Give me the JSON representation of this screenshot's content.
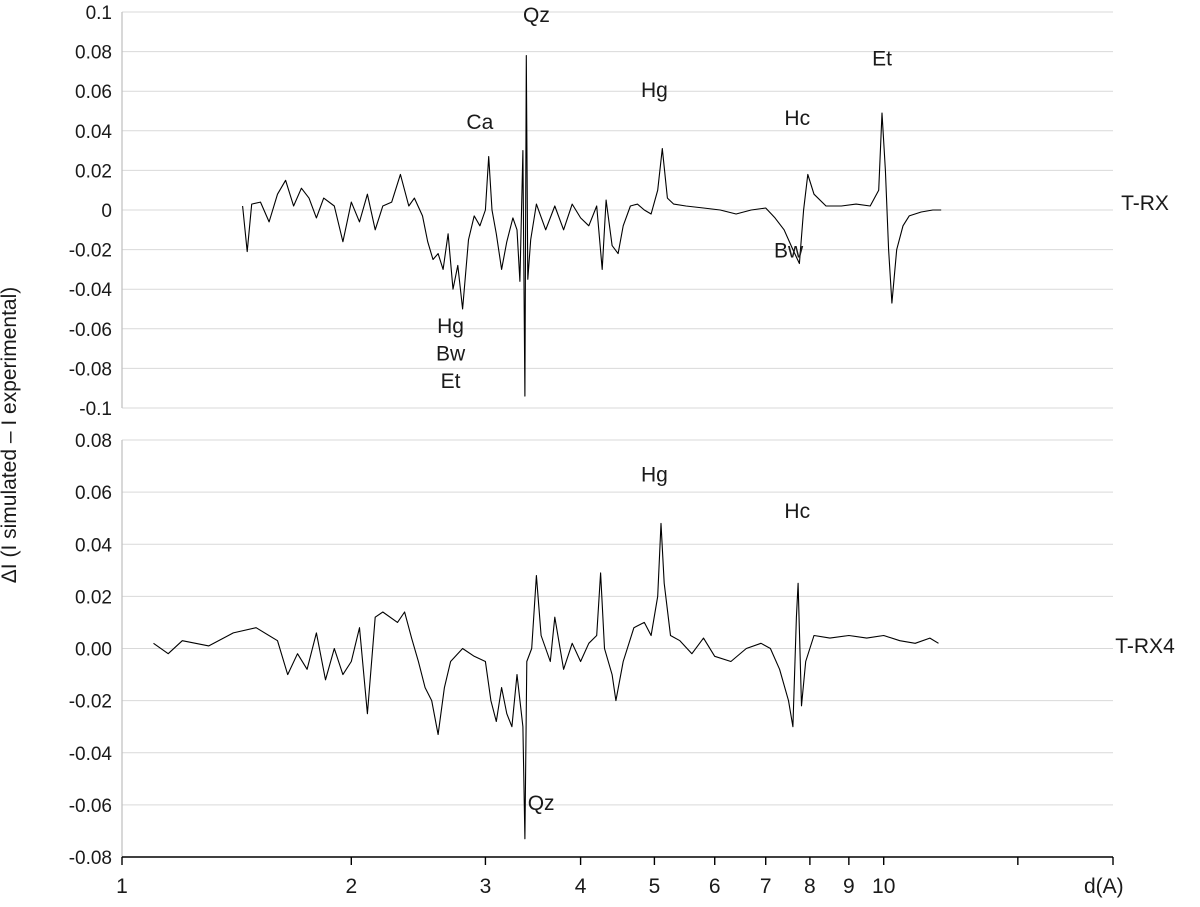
{
  "chart_data": [
    {
      "type": "line",
      "panel": "top",
      "series_label": "T-RX",
      "ylabel": "ΔI (I simulated – I experimental)",
      "xlabel": "d(A)",
      "x_scale": "log",
      "xlim": [
        1,
        20
      ],
      "ylim": [
        -0.1,
        0.1
      ],
      "y_ticks": [
        "0.1",
        "0.08",
        "0.06",
        "0.04",
        "0.02",
        "0",
        "-0.02",
        "-0.04",
        "-0.06",
        "-0.08",
        "-0.1"
      ],
      "y_tick_values": [
        0.1,
        0.08,
        0.06,
        0.04,
        0.02,
        0,
        -0.02,
        -0.04,
        -0.06,
        -0.08,
        -0.1
      ],
      "grid": true,
      "x_range": [
        1.44,
        11.9
      ],
      "points": [
        [
          1.44,
          0.002
        ],
        [
          1.46,
          -0.021
        ],
        [
          1.48,
          0.003
        ],
        [
          1.52,
          0.004
        ],
        [
          1.56,
          -0.006
        ],
        [
          1.6,
          0.008
        ],
        [
          1.64,
          0.015
        ],
        [
          1.68,
          0.002
        ],
        [
          1.72,
          0.011
        ],
        [
          1.76,
          0.006
        ],
        [
          1.8,
          -0.004
        ],
        [
          1.84,
          0.006
        ],
        [
          1.9,
          0.002
        ],
        [
          1.95,
          -0.016
        ],
        [
          2.0,
          0.004
        ],
        [
          2.05,
          -0.006
        ],
        [
          2.1,
          0.008
        ],
        [
          2.15,
          -0.01
        ],
        [
          2.2,
          0.002
        ],
        [
          2.26,
          0.004
        ],
        [
          2.32,
          0.018
        ],
        [
          2.38,
          0.002
        ],
        [
          2.42,
          0.006
        ],
        [
          2.48,
          -0.003
        ],
        [
          2.52,
          -0.016
        ],
        [
          2.56,
          -0.025
        ],
        [
          2.6,
          -0.022
        ],
        [
          2.64,
          -0.03
        ],
        [
          2.68,
          -0.012
        ],
        [
          2.72,
          -0.04
        ],
        [
          2.76,
          -0.028
        ],
        [
          2.8,
          -0.05
        ],
        [
          2.85,
          -0.015
        ],
        [
          2.9,
          -0.003
        ],
        [
          2.95,
          -0.008
        ],
        [
          3.0,
          0.0
        ],
        [
          3.03,
          0.027
        ],
        [
          3.06,
          0.0
        ],
        [
          3.1,
          -0.012
        ],
        [
          3.15,
          -0.03
        ],
        [
          3.2,
          -0.016
        ],
        [
          3.26,
          -0.004
        ],
        [
          3.3,
          -0.01
        ],
        [
          3.33,
          -0.036
        ],
        [
          3.36,
          0.03
        ],
        [
          3.38,
          -0.094
        ],
        [
          3.395,
          0.078
        ],
        [
          3.41,
          -0.035
        ],
        [
          3.44,
          -0.015
        ],
        [
          3.5,
          0.003
        ],
        [
          3.6,
          -0.01
        ],
        [
          3.7,
          0.002
        ],
        [
          3.8,
          -0.01
        ],
        [
          3.9,
          0.003
        ],
        [
          4.0,
          -0.004
        ],
        [
          4.1,
          -0.008
        ],
        [
          4.2,
          0.002
        ],
        [
          4.27,
          -0.03
        ],
        [
          4.32,
          0.005
        ],
        [
          4.4,
          -0.018
        ],
        [
          4.48,
          -0.022
        ],
        [
          4.55,
          -0.008
        ],
        [
          4.65,
          0.002
        ],
        [
          4.75,
          0.003
        ],
        [
          4.85,
          0.0
        ],
        [
          4.95,
          -0.002
        ],
        [
          5.05,
          0.01
        ],
        [
          5.12,
          0.031
        ],
        [
          5.2,
          0.006
        ],
        [
          5.3,
          0.003
        ],
        [
          5.5,
          0.002
        ],
        [
          5.8,
          0.001
        ],
        [
          6.1,
          0.0
        ],
        [
          6.4,
          -0.002
        ],
        [
          6.7,
          0.0
        ],
        [
          7.0,
          0.001
        ],
        [
          7.2,
          -0.004
        ],
        [
          7.4,
          -0.01
        ],
        [
          7.6,
          -0.02
        ],
        [
          7.75,
          -0.027
        ],
        [
          7.85,
          0.0
        ],
        [
          7.95,
          0.018
        ],
        [
          8.1,
          0.008
        ],
        [
          8.4,
          0.002
        ],
        [
          8.8,
          0.002
        ],
        [
          9.2,
          0.003
        ],
        [
          9.6,
          0.002
        ],
        [
          9.85,
          0.01
        ],
        [
          9.95,
          0.049
        ],
        [
          10.05,
          0.02
        ],
        [
          10.15,
          -0.02
        ],
        [
          10.25,
          -0.047
        ],
        [
          10.4,
          -0.02
        ],
        [
          10.6,
          -0.008
        ],
        [
          10.8,
          -0.003
        ],
        [
          11.2,
          -0.001
        ],
        [
          11.6,
          0.0
        ],
        [
          11.9,
          0.0
        ]
      ],
      "annotations": [
        {
          "text": "Qz",
          "x": 3.5,
          "y": 0.095
        },
        {
          "text": "Ca",
          "x": 2.95,
          "y": 0.041
        },
        {
          "text": "Hg",
          "x": 5.0,
          "y": 0.057
        },
        {
          "text": "Hc",
          "x": 7.7,
          "y": 0.043
        },
        {
          "text": "Et",
          "x": 9.95,
          "y": 0.073
        },
        {
          "text": "Bw",
          "x": 7.5,
          "y": -0.024
        },
        {
          "text": "Hg",
          "x": 2.7,
          "y": -0.062
        },
        {
          "text": "Bw",
          "x": 2.7,
          "y": -0.076
        },
        {
          "text": "Et",
          "x": 2.7,
          "y": -0.09
        }
      ]
    },
    {
      "type": "line",
      "panel": "bottom",
      "series_label": "T-RX4",
      "x_scale": "log",
      "xlim": [
        1,
        20
      ],
      "ylim": [
        -0.08,
        0.08
      ],
      "y_ticks": [
        "0.08",
        "0.06",
        "0.04",
        "0.02",
        "0.00",
        "-0.02",
        "-0.04",
        "-0.06",
        "-0.08"
      ],
      "y_tick_values": [
        0.08,
        0.06,
        0.04,
        0.02,
        0,
        -0.02,
        -0.04,
        -0.06,
        -0.08
      ],
      "grid": true,
      "x_range": [
        1.1,
        11.8
      ],
      "points": [
        [
          1.1,
          0.002
        ],
        [
          1.15,
          -0.002
        ],
        [
          1.2,
          0.003
        ],
        [
          1.3,
          0.001
        ],
        [
          1.4,
          0.006
        ],
        [
          1.5,
          0.008
        ],
        [
          1.6,
          0.003
        ],
        [
          1.65,
          -0.01
        ],
        [
          1.7,
          -0.002
        ],
        [
          1.75,
          -0.008
        ],
        [
          1.8,
          0.006
        ],
        [
          1.85,
          -0.012
        ],
        [
          1.9,
          0.0
        ],
        [
          1.95,
          -0.01
        ],
        [
          2.0,
          -0.005
        ],
        [
          2.05,
          0.008
        ],
        [
          2.1,
          -0.025
        ],
        [
          2.15,
          0.012
        ],
        [
          2.2,
          0.014
        ],
        [
          2.3,
          0.01
        ],
        [
          2.35,
          0.014
        ],
        [
          2.4,
          0.004
        ],
        [
          2.45,
          -0.005
        ],
        [
          2.5,
          -0.015
        ],
        [
          2.55,
          -0.02
        ],
        [
          2.6,
          -0.033
        ],
        [
          2.65,
          -0.015
        ],
        [
          2.7,
          -0.005
        ],
        [
          2.8,
          0.0
        ],
        [
          2.9,
          -0.003
        ],
        [
          3.0,
          -0.005
        ],
        [
          3.05,
          -0.02
        ],
        [
          3.1,
          -0.028
        ],
        [
          3.15,
          -0.015
        ],
        [
          3.2,
          -0.025
        ],
        [
          3.25,
          -0.03
        ],
        [
          3.3,
          -0.01
        ],
        [
          3.36,
          -0.03
        ],
        [
          3.38,
          -0.073
        ],
        [
          3.4,
          -0.005
        ],
        [
          3.45,
          0.0
        ],
        [
          3.5,
          0.028
        ],
        [
          3.55,
          0.005
        ],
        [
          3.65,
          -0.005
        ],
        [
          3.7,
          0.012
        ],
        [
          3.8,
          -0.008
        ],
        [
          3.9,
          0.002
        ],
        [
          4.0,
          -0.005
        ],
        [
          4.1,
          0.002
        ],
        [
          4.2,
          0.005
        ],
        [
          4.25,
          0.029
        ],
        [
          4.3,
          0.0
        ],
        [
          4.4,
          -0.01
        ],
        [
          4.45,
          -0.02
        ],
        [
          4.55,
          -0.005
        ],
        [
          4.7,
          0.008
        ],
        [
          4.85,
          0.01
        ],
        [
          4.95,
          0.005
        ],
        [
          5.05,
          0.02
        ],
        [
          5.1,
          0.048
        ],
        [
          5.15,
          0.025
        ],
        [
          5.25,
          0.005
        ],
        [
          5.4,
          0.003
        ],
        [
          5.6,
          -0.002
        ],
        [
          5.8,
          0.004
        ],
        [
          6.0,
          -0.003
        ],
        [
          6.3,
          -0.005
        ],
        [
          6.6,
          0.0
        ],
        [
          6.9,
          0.002
        ],
        [
          7.1,
          0.0
        ],
        [
          7.3,
          -0.008
        ],
        [
          7.5,
          -0.02
        ],
        [
          7.6,
          -0.03
        ],
        [
          7.68,
          0.012
        ],
        [
          7.72,
          0.025
        ],
        [
          7.8,
          -0.022
        ],
        [
          7.9,
          -0.005
        ],
        [
          8.1,
          0.005
        ],
        [
          8.5,
          0.004
        ],
        [
          9.0,
          0.005
        ],
        [
          9.5,
          0.004
        ],
        [
          10.0,
          0.005
        ],
        [
          10.5,
          0.003
        ],
        [
          11.0,
          0.002
        ],
        [
          11.5,
          0.004
        ],
        [
          11.8,
          0.002
        ]
      ],
      "annotations": [
        {
          "text": "Hg",
          "x": 5.0,
          "y": 0.064
        },
        {
          "text": "Hc",
          "x": 7.7,
          "y": 0.05
        },
        {
          "text": "Qz",
          "x": 3.55,
          "y": -0.062
        }
      ]
    }
  ],
  "x_axis": {
    "label": "d(A)",
    "ticks": [
      "1",
      "2",
      "3",
      "4",
      "5",
      "6",
      "7",
      "8",
      "9",
      "10"
    ],
    "tick_values": [
      1,
      2,
      3,
      4,
      5,
      6,
      7,
      8,
      9,
      10
    ],
    "minor_tick_values": [
      15,
      20
    ]
  }
}
